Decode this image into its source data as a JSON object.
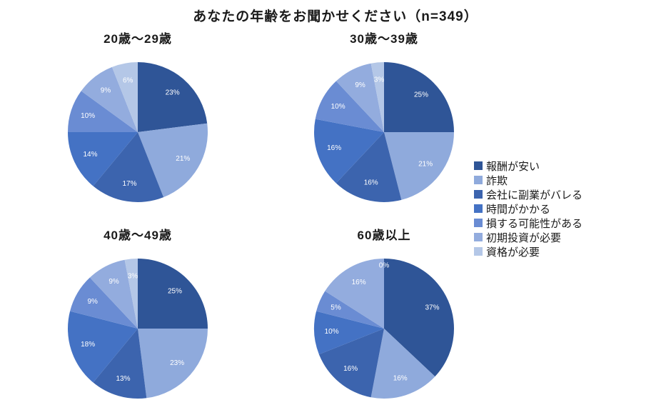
{
  "title": "あなたの年齢をお聞かせください（n=349）",
  "colors": [
    "#2F5597",
    "#8FAADC",
    "#3C64AE",
    "#4472C4",
    "#6A8CD3",
    "#93ACDE",
    "#B4C7E7"
  ],
  "legend": [
    "報酬が安い",
    "詐欺",
    "会社に副業がバレる",
    "時間がかかる",
    "損する可能性がある",
    "初期投資が必要",
    "資格が必要"
  ],
  "chart_data": [
    {
      "type": "pie",
      "title": "20歳〜29歳",
      "categories": [
        "報酬が安い",
        "詐欺",
        "会社に副業がバレる",
        "時間がかかる",
        "損する可能性がある",
        "初期投資が必要",
        "資格が必要"
      ],
      "values": [
        23,
        21,
        17,
        14,
        10,
        9,
        6
      ],
      "unit": "%",
      "start_angle": "12 o'clock, clockwise",
      "labels_inside": true
    },
    {
      "type": "pie",
      "title": "30歳〜39歳",
      "categories": [
        "報酬が安い",
        "詐欺",
        "会社に副業がバレる",
        "時間がかかる",
        "損する可能性がある",
        "初期投資が必要",
        "資格が必要"
      ],
      "values": [
        25,
        21,
        16,
        16,
        10,
        9,
        3
      ],
      "unit": "%",
      "start_angle": "12 o'clock, clockwise",
      "labels_inside": true
    },
    {
      "type": "pie",
      "title": "40歳〜49歳",
      "categories": [
        "報酬が安い",
        "詐欺",
        "会社に副業がバレる",
        "時間がかかる",
        "損する可能性がある",
        "初期投資が必要",
        "資格が必要"
      ],
      "values": [
        25,
        23,
        13,
        18,
        9,
        9,
        3
      ],
      "unit": "%",
      "start_angle": "12 o'clock, clockwise",
      "labels_inside": true
    },
    {
      "type": "pie",
      "title": "60歳以上",
      "categories": [
        "報酬が安い",
        "詐欺",
        "会社に副業がバレる",
        "時間がかかる",
        "損する可能性がある",
        "初期投資が必要",
        "資格が必要"
      ],
      "values": [
        37,
        16,
        16,
        10,
        5,
        16,
        0
      ],
      "unit": "%",
      "start_angle": "12 o'clock, clockwise",
      "labels_inside": true
    }
  ]
}
